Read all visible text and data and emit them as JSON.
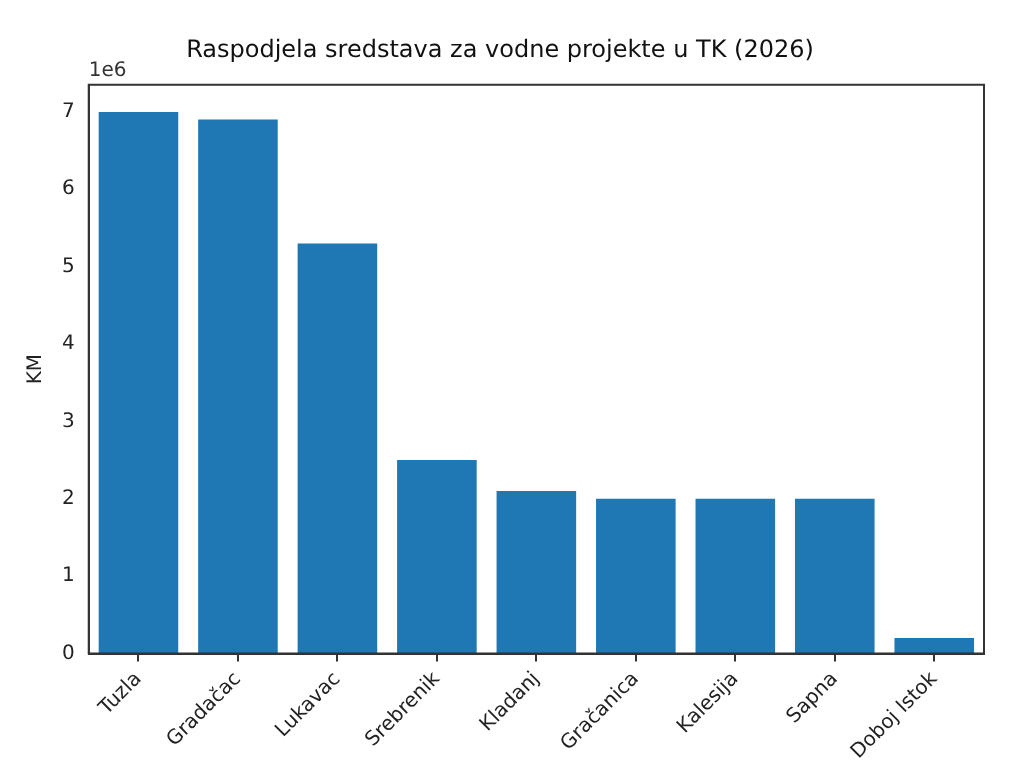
{
  "chart_data": {
    "type": "bar",
    "title": "Raspodjela sredstava za vodne projekte u TK (2026)",
    "ylabel": "KM",
    "categories": [
      "Tuzla",
      "Gradačac",
      "Lukavac",
      "Srebrenik",
      "Kladanj",
      "Gračanica",
      "Kalesija",
      "Sapna",
      "Doboj Istok"
    ],
    "values": [
      7,
      6.9,
      5.3,
      2.5,
      2.1,
      2,
      2,
      2,
      0.2
    ],
    "color": "#1f77b4",
    "ylim": [
      0,
      7.35
    ],
    "yticks": [
      0,
      1,
      2,
      3,
      4,
      5,
      6,
      7
    ],
    "annotations": [
      "1e6"
    ],
    "grid": false,
    "legend": false
  }
}
